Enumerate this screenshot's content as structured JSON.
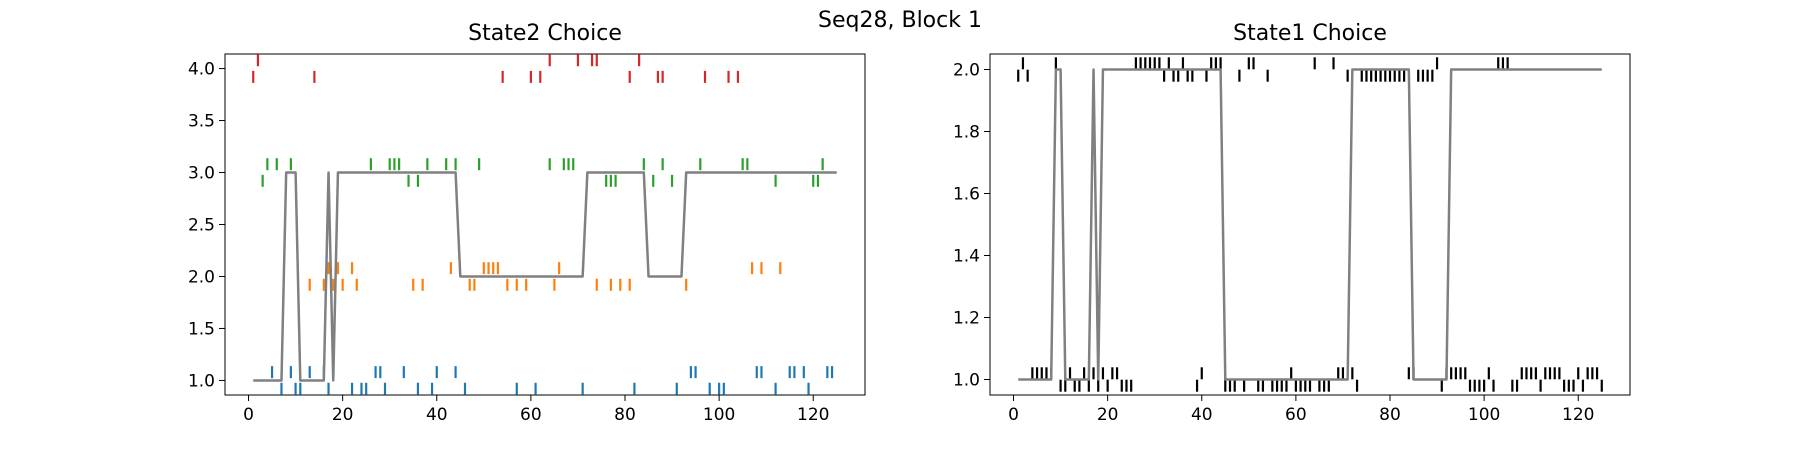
{
  "figure": {
    "suptitle": "Seq28, Block 1"
  },
  "chart_data": [
    {
      "type": "scatter",
      "title": "State2 Choice",
      "xlabel": "",
      "ylabel": "",
      "xlim": [
        -5,
        131
      ],
      "ylim": [
        0.86,
        4.14
      ],
      "xticks": [
        0,
        20,
        40,
        60,
        80,
        100,
        120
      ],
      "yticks": [
        1.0,
        1.5,
        2.0,
        2.5,
        3.0,
        3.5,
        4.0
      ],
      "ytick_labels": [
        "1.0",
        "1.5",
        "2.0",
        "2.5",
        "3.0",
        "3.5",
        "4.0"
      ],
      "grid": false,
      "marker": "vertical tick",
      "series": [
        {
          "color": "#1f77b4",
          "x": [
            5,
            7,
            9,
            10,
            11,
            13,
            16,
            17,
            18,
            22,
            24,
            25,
            27,
            28,
            29,
            33,
            36,
            39,
            40,
            44,
            46,
            57,
            61,
            71,
            82,
            91,
            94,
            95,
            98,
            100,
            101,
            108,
            109,
            112,
            115,
            116,
            118,
            119,
            123,
            124
          ],
          "y": [
            1.08,
            0.92,
            1.08,
            0.92,
            0.92,
            1.08,
            1.08,
            0.92,
            1.08,
            0.92,
            0.92,
            0.92,
            1.08,
            1.08,
            0.92,
            1.08,
            0.92,
            0.92,
            1.08,
            1.08,
            0.92,
            0.92,
            0.92,
            0.92,
            0.92,
            0.92,
            1.08,
            1.08,
            0.92,
            0.92,
            0.92,
            1.08,
            1.08,
            0.92,
            1.08,
            1.08,
            1.08,
            0.92,
            1.08,
            1.08
          ]
        },
        {
          "color": "#ff7f0e",
          "x": [
            13,
            16,
            17,
            18,
            19,
            20,
            22,
            23,
            35,
            37,
            43,
            47,
            48,
            50,
            51,
            52,
            53,
            55,
            57,
            59,
            65,
            66,
            74,
            77,
            79,
            81,
            93,
            107,
            109,
            113
          ],
          "y": [
            1.92,
            1.92,
            2.08,
            1.92,
            2.08,
            1.92,
            2.08,
            1.92,
            1.92,
            1.92,
            2.08,
            1.92,
            1.92,
            2.08,
            2.08,
            2.08,
            2.08,
            1.92,
            1.92,
            1.92,
            1.92,
            2.08,
            1.92,
            1.92,
            1.92,
            1.92,
            1.92,
            2.08,
            2.08,
            2.08
          ]
        },
        {
          "color": "#2ca02c",
          "x": [
            3,
            4,
            6,
            9,
            26,
            30,
            31,
            32,
            34,
            36,
            38,
            42,
            44,
            49,
            64,
            67,
            68,
            69,
            76,
            77,
            78,
            84,
            86,
            88,
            90,
            96,
            105,
            106,
            112,
            120,
            121,
            122
          ],
          "y": [
            2.92,
            3.08,
            3.08,
            3.08,
            3.08,
            3.08,
            3.08,
            3.08,
            2.92,
            2.92,
            3.08,
            3.08,
            3.08,
            3.08,
            3.08,
            3.08,
            3.08,
            3.08,
            2.92,
            2.92,
            2.92,
            3.08,
            2.92,
            3.08,
            2.92,
            3.08,
            3.08,
            3.08,
            2.92,
            2.92,
            2.92,
            3.08
          ]
        },
        {
          "color": "#d62728",
          "x": [
            1,
            2,
            14,
            54,
            60,
            62,
            64,
            70,
            73,
            74,
            81,
            83,
            87,
            88,
            97,
            102,
            104
          ],
          "y": [
            3.92,
            4.08,
            3.92,
            3.92,
            3.92,
            3.92,
            4.08,
            4.08,
            4.08,
            4.08,
            3.92,
            4.08,
            3.92,
            3.92,
            3.92,
            3.92,
            3.92
          ]
        },
        {
          "color": "#808080",
          "line": true,
          "x": [
            1,
            7,
            8,
            10,
            11,
            16,
            17,
            18,
            19,
            44,
            45,
            71,
            72,
            84,
            85,
            92,
            93,
            125
          ],
          "y": [
            1,
            1,
            3,
            3,
            1,
            1,
            3,
            1,
            3,
            3,
            2,
            2,
            3,
            3,
            2,
            2,
            3,
            3
          ]
        }
      ]
    },
    {
      "type": "scatter",
      "title": "State1 Choice",
      "xlabel": "",
      "ylabel": "",
      "xlim": [
        -5,
        131
      ],
      "ylim": [
        0.95,
        2.05
      ],
      "xticks": [
        0,
        20,
        40,
        60,
        80,
        100,
        120
      ],
      "yticks": [
        1.0,
        1.2,
        1.4,
        1.6,
        1.8,
        2.0
      ],
      "ytick_labels": [
        "1.0",
        "1.2",
        "1.4",
        "1.6",
        "1.8",
        "2.0"
      ],
      "grid": false,
      "marker": "vertical tick",
      "series": [
        {
          "color": "#000000",
          "x": [
            1,
            2,
            3,
            4,
            5,
            6,
            7,
            8,
            9,
            10,
            11,
            12,
            13,
            14,
            15,
            16,
            17,
            18,
            19,
            20,
            21,
            22,
            23,
            24,
            25,
            26,
            27,
            28,
            29,
            30,
            31,
            32,
            33,
            34,
            35,
            36,
            37,
            38,
            39,
            40,
            41,
            42,
            43,
            44,
            45,
            46,
            47,
            48,
            49,
            50,
            51,
            52,
            53,
            54,
            55,
            56,
            57,
            58,
            59,
            60,
            61,
            62,
            63,
            64,
            65,
            66,
            67,
            68,
            69,
            70,
            71,
            72,
            73,
            74,
            75,
            76,
            77,
            78,
            79,
            80,
            81,
            82,
            83,
            84,
            85,
            86,
            87,
            88,
            89,
            90,
            91,
            92,
            93,
            94,
            95,
            96,
            97,
            98,
            99,
            100,
            101,
            102,
            103,
            104,
            105,
            106,
            107,
            108,
            109,
            110,
            111,
            112,
            113,
            114,
            115,
            116,
            117,
            118,
            119,
            120,
            121,
            122,
            123,
            124,
            125
          ],
          "y": [
            1.98,
            2.02,
            1.98,
            1.02,
            1.02,
            1.02,
            1.02,
            1.02,
            2.02,
            0.98,
            0.98,
            1.02,
            0.98,
            0.98,
            1.02,
            0.98,
            1.02,
            0.98,
            1.02,
            0.98,
            1.02,
            1.02,
            0.98,
            0.98,
            0.98,
            2.02,
            2.02,
            2.02,
            2.02,
            2.02,
            2.02,
            1.98,
            2.02,
            1.98,
            1.98,
            2.02,
            1.98,
            1.98,
            0.98,
            1.02,
            1.98,
            2.02,
            2.02,
            2.02,
            0.98,
            0.98,
            0.98,
            1.98,
            0.98,
            2.02,
            2.02,
            0.98,
            0.98,
            1.98,
            0.98,
            0.98,
            0.98,
            0.98,
            1.02,
            0.98,
            0.98,
            0.98,
            0.98,
            2.02,
            0.98,
            0.98,
            0.98,
            2.02,
            1.02,
            1.02,
            1.98,
            1.02,
            0.98,
            1.98,
            1.98,
            1.98,
            1.98,
            1.98,
            1.98,
            1.98,
            1.98,
            1.98,
            1.98,
            1.02,
            1.02,
            1.98,
            1.98,
            1.98,
            1.98,
            2.02,
            0.98,
            1.02,
            1.02,
            1.02,
            1.02,
            1.02,
            0.98,
            0.98,
            0.98,
            0.98,
            1.02,
            0.98,
            2.02,
            2.02,
            2.02,
            0.98,
            0.98,
            1.02,
            1.02,
            1.02,
            1.02,
            0.98,
            1.02,
            1.02,
            1.02,
            1.02,
            0.98,
            0.98,
            0.98,
            1.02,
            0.98,
            1.02,
            1.02,
            1.02,
            0.98
          ]
        },
        {
          "color": "#808080",
          "line": true,
          "x": [
            1,
            8,
            9,
            10,
            11,
            16,
            17,
            18,
            19,
            44,
            45,
            71,
            72,
            84,
            85,
            92,
            93,
            125
          ],
          "y": [
            1,
            1,
            2,
            2,
            1,
            1,
            2,
            1,
            2,
            2,
            1,
            1,
            2,
            2,
            1,
            1,
            2,
            2
          ]
        }
      ]
    }
  ]
}
